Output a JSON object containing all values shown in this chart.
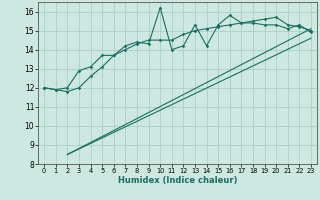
{
  "xlabel": "Humidex (Indice chaleur)",
  "xlim": [
    -0.5,
    23.5
  ],
  "ylim": [
    8,
    16.5
  ],
  "yticks": [
    8,
    9,
    10,
    11,
    12,
    13,
    14,
    15,
    16
  ],
  "xticks": [
    0,
    1,
    2,
    3,
    4,
    5,
    6,
    7,
    8,
    9,
    10,
    11,
    12,
    13,
    14,
    15,
    16,
    17,
    18,
    19,
    20,
    21,
    22,
    23
  ],
  "bg_color": "#cce8e0",
  "grid_color": "#aacfc5",
  "line_color": "#1a6e62",
  "line1_x": [
    0,
    1,
    2,
    3,
    4,
    5,
    6,
    7,
    8,
    9,
    10,
    11,
    12,
    13,
    14,
    15,
    16,
    17,
    18,
    19,
    20,
    21,
    22,
    23
  ],
  "line1_y": [
    12.0,
    11.9,
    12.0,
    12.9,
    13.1,
    13.7,
    13.7,
    14.2,
    14.4,
    14.3,
    16.2,
    14.0,
    14.2,
    15.3,
    14.2,
    15.3,
    15.8,
    15.4,
    15.4,
    15.3,
    15.3,
    15.1,
    15.3,
    14.9
  ],
  "line2_x": [
    0,
    1,
    2,
    3,
    4,
    5,
    6,
    7,
    8,
    9,
    10,
    11,
    12,
    13,
    14,
    15,
    16,
    17,
    18,
    19,
    20,
    21,
    22,
    23
  ],
  "line2_y": [
    12.0,
    11.9,
    11.8,
    12.0,
    12.6,
    13.1,
    13.7,
    14.0,
    14.3,
    14.5,
    14.5,
    14.5,
    14.8,
    15.0,
    15.1,
    15.2,
    15.3,
    15.4,
    15.5,
    15.6,
    15.7,
    15.3,
    15.2,
    15.0
  ],
  "line3_x": [
    2,
    23
  ],
  "line3_y": [
    8.5,
    15.1
  ],
  "line4_x": [
    2,
    23
  ],
  "line4_y": [
    8.5,
    14.6
  ]
}
